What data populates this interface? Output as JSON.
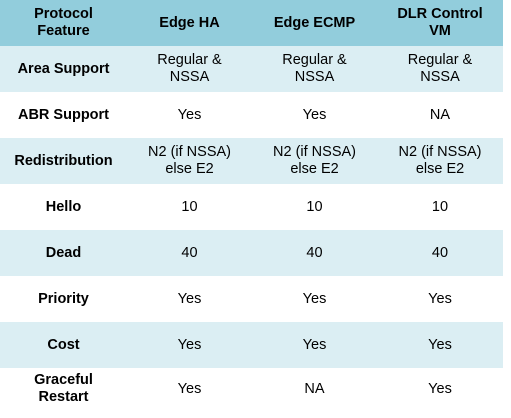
{
  "table": {
    "headers": [
      [
        "Protocol",
        "Feature"
      ],
      [
        "Edge HA"
      ],
      [
        "Edge ECMP"
      ],
      [
        "DLR Control",
        "VM"
      ]
    ],
    "rows": [
      {
        "feature": [
          "Area Support"
        ],
        "cells": [
          [
            "Regular &",
            "NSSA"
          ],
          [
            "Regular &",
            "NSSA"
          ],
          [
            "Regular &",
            "NSSA"
          ]
        ]
      },
      {
        "feature": [
          "ABR Support"
        ],
        "cells": [
          [
            "Yes"
          ],
          [
            "Yes"
          ],
          [
            "NA"
          ]
        ]
      },
      {
        "feature": [
          "Redistribution"
        ],
        "cells": [
          [
            "N2 (if NSSA)",
            "else E2"
          ],
          [
            "N2 (if NSSA)",
            "else E2"
          ],
          [
            "N2 (if NSSA)",
            "else E2"
          ]
        ]
      },
      {
        "feature": [
          "Hello"
        ],
        "cells": [
          [
            "10"
          ],
          [
            "10"
          ],
          [
            "10"
          ]
        ]
      },
      {
        "feature": [
          "Dead"
        ],
        "cells": [
          [
            "40"
          ],
          [
            "40"
          ],
          [
            "40"
          ]
        ]
      },
      {
        "feature": [
          "Priority"
        ],
        "cells": [
          [
            "Yes"
          ],
          [
            "Yes"
          ],
          [
            "Yes"
          ]
        ]
      },
      {
        "feature": [
          "Cost"
        ],
        "cells": [
          [
            "Yes"
          ],
          [
            "Yes"
          ],
          [
            "Yes"
          ]
        ]
      },
      {
        "feature": [
          "Graceful",
          "Restart"
        ],
        "cells": [
          [
            "Yes"
          ],
          [
            "NA"
          ],
          [
            "Yes"
          ]
        ]
      }
    ]
  },
  "colors": {
    "header_bg": "#92cddc",
    "alt_row_bg": "#dbeef3",
    "row_bg": "#ffffff"
  }
}
